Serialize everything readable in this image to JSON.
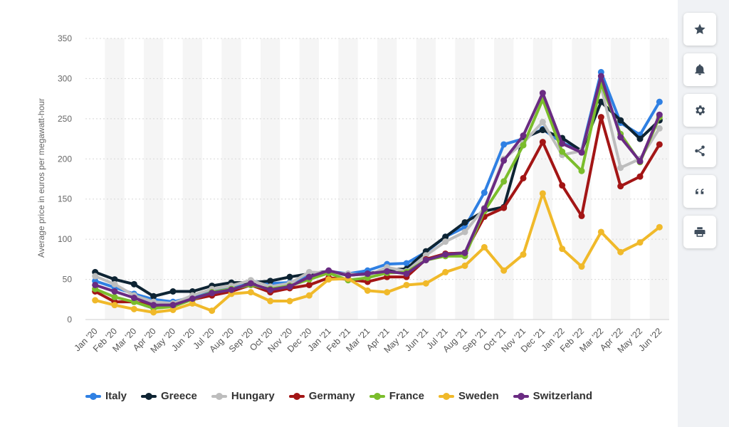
{
  "chart_data": {
    "type": "line",
    "ylabel": "Average price in euros per megawatt-hour",
    "xlabel": "",
    "ylim": [
      0,
      350
    ],
    "yticks": [
      0,
      50,
      100,
      150,
      200,
      250,
      300,
      350
    ],
    "grid": true,
    "legend": "bottom",
    "categories": [
      "Jan '20",
      "Feb '20",
      "Mar '20",
      "Apr '20",
      "May '20",
      "Jun '20",
      "Jul '20",
      "Aug '20",
      "Sep '20",
      "Oct '20",
      "Nov '20",
      "Dec '20",
      "Jan '21",
      "Feb '21",
      "Mar '21",
      "Apr '21",
      "May '21",
      "Jun '21",
      "Jul '21",
      "Aug '21",
      "Sep '21",
      "Oct '21",
      "Nov '21",
      "Dec '21",
      "Jan '22",
      "Feb '22",
      "Mar '22",
      "Apr '22",
      "May '22",
      "Jun '22"
    ],
    "series": [
      {
        "name": "Italy",
        "color": "#2f80e3",
        "values": [
          48,
          40,
          32,
          25,
          22,
          28,
          37,
          40,
          48,
          45,
          46,
          55,
          60,
          57,
          61,
          69,
          70,
          84,
          103,
          115,
          158,
          218,
          225,
          237,
          220,
          210,
          308,
          245,
          230,
          271
        ]
      },
      {
        "name": "Greece",
        "color": "#0e2433",
        "values": [
          59,
          50,
          44,
          29,
          35,
          35,
          42,
          46,
          46,
          48,
          53,
          57,
          60,
          55,
          57,
          62,
          63,
          85,
          103,
          121,
          135,
          140,
          226,
          236,
          226,
          210,
          271,
          248,
          225,
          248
        ]
      },
      {
        "name": "Hungary",
        "color": "#bdbdbd",
        "values": [
          54,
          44,
          30,
          22,
          20,
          30,
          38,
          42,
          49,
          41,
          45,
          59,
          58,
          57,
          55,
          65,
          60,
          80,
          97,
          109,
          139,
          200,
          220,
          246,
          205,
          210,
          290,
          189,
          200,
          238
        ]
      },
      {
        "name": "Germany",
        "color": "#a31515",
        "values": [
          35,
          22,
          22,
          17,
          18,
          25,
          30,
          35,
          43,
          34,
          39,
          43,
          52,
          50,
          47,
          53,
          53,
          75,
          82,
          83,
          128,
          139,
          176,
          221,
          167,
          129,
          252,
          166,
          178,
          218
        ]
      },
      {
        "name": "France",
        "color": "#7bbd2c",
        "values": [
          38,
          28,
          22,
          14,
          16,
          25,
          34,
          38,
          43,
          38,
          42,
          50,
          58,
          49,
          52,
          58,
          59,
          74,
          79,
          79,
          135,
          172,
          217,
          274,
          209,
          185,
          294,
          231,
          196,
          252
        ]
      },
      {
        "name": "Sweden",
        "color": "#f0b92a",
        "values": [
          24,
          18,
          13,
          9,
          12,
          20,
          11,
          32,
          34,
          23,
          23,
          30,
          50,
          51,
          36,
          34,
          43,
          45,
          59,
          67,
          90,
          61,
          81,
          157,
          88,
          66,
          109,
          84,
          96,
          115
        ]
      },
      {
        "name": "Switzerland",
        "color": "#6a2b82",
        "values": [
          43,
          35,
          27,
          18,
          18,
          26,
          33,
          37,
          45,
          37,
          41,
          53,
          61,
          55,
          57,
          60,
          57,
          74,
          81,
          83,
          138,
          198,
          229,
          282,
          219,
          208,
          303,
          227,
          197,
          255
        ]
      }
    ]
  },
  "sidebar": [
    {
      "icon": "star-icon"
    },
    {
      "icon": "bell-icon"
    },
    {
      "icon": "gear-icon"
    },
    {
      "icon": "share-icon"
    },
    {
      "icon": "quote-icon"
    },
    {
      "icon": "print-icon"
    }
  ]
}
